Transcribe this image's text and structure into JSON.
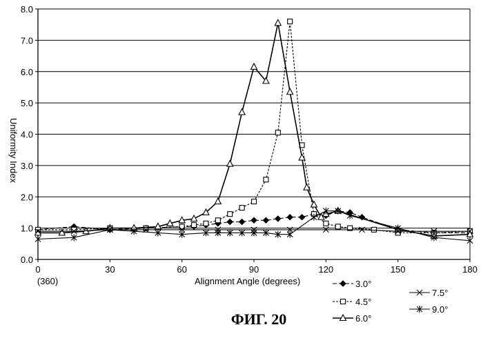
{
  "chart_data": {
    "type": "line",
    "title": "",
    "xlabel": "Alignment Angle (degrees)",
    "ylabel": "Uniformity Index",
    "xlim": [
      0,
      180
    ],
    "ylim": [
      0,
      8
    ],
    "x_ticks": [
      0,
      30,
      60,
      90,
      120,
      150,
      180
    ],
    "x_tick_labels": [
      "0",
      "30",
      "60",
      "90",
      "120",
      "150",
      "180"
    ],
    "x_tick_sublabel": "(360)",
    "y_ticks": [
      0,
      1,
      2,
      3,
      4,
      5,
      6,
      7,
      8
    ],
    "y_tick_labels": [
      "0.0",
      "1.0",
      "2.0",
      "3.0",
      "4.0",
      "5.0",
      "6.0",
      "7.0",
      "8.0"
    ],
    "grid": "horizontal",
    "legend_position": "bottom-right",
    "caption": "ФИГ. 20",
    "series": [
      {
        "name": "3.0°",
        "marker": "diamond-filled",
        "dash": "6,3",
        "x": [
          0,
          15,
          30,
          45,
          60,
          65,
          70,
          75,
          80,
          85,
          90,
          95,
          100,
          105,
          110,
          115,
          120,
          125,
          130,
          135,
          150,
          165,
          180
        ],
        "y": [
          0.95,
          1.05,
          0.95,
          1.0,
          1.05,
          1.05,
          1.1,
          1.15,
          1.2,
          1.2,
          1.25,
          1.25,
          1.3,
          1.35,
          1.35,
          1.45,
          1.4,
          1.55,
          1.5,
          1.35,
          0.95,
          0.85,
          0.85
        ]
      },
      {
        "name": "4.5°",
        "marker": "square-open",
        "dash": "3,2",
        "x": [
          0,
          15,
          30,
          45,
          60,
          65,
          70,
          75,
          80,
          85,
          90,
          95,
          100,
          105,
          110,
          115,
          120,
          125,
          130,
          140,
          150,
          165,
          180
        ],
        "y": [
          0.95,
          0.95,
          1.0,
          1.0,
          1.05,
          1.1,
          1.15,
          1.25,
          1.45,
          1.65,
          1.85,
          2.55,
          4.05,
          7.6,
          3.65,
          1.45,
          1.15,
          1.05,
          1.0,
          0.95,
          0.85,
          0.85,
          0.9
        ]
      },
      {
        "name": "6.0°",
        "marker": "triangle-open",
        "dash": "",
        "x": [
          0,
          10,
          20,
          30,
          40,
          50,
          55,
          60,
          65,
          70,
          75,
          80,
          85,
          90,
          95,
          100,
          105,
          110,
          112,
          115,
          118,
          120,
          125,
          150,
          165,
          180
        ],
        "y": [
          0.85,
          0.85,
          0.9,
          1.0,
          1.0,
          1.05,
          1.15,
          1.25,
          1.3,
          1.5,
          1.85,
          3.05,
          4.7,
          6.15,
          5.7,
          7.55,
          5.35,
          3.25,
          2.3,
          1.75,
          1.35,
          1.45,
          1.55,
          0.95,
          0.75,
          0.8
        ]
      },
      {
        "name": "7.5°",
        "marker": "x",
        "dash": "",
        "x": [
          0,
          15,
          30,
          45,
          60,
          75,
          90,
          105,
          120,
          135,
          150,
          165,
          180
        ],
        "y": [
          0.9,
          0.9,
          0.95,
          0.95,
          0.95,
          0.95,
          0.95,
          0.95,
          0.95,
          0.95,
          0.9,
          0.9,
          0.9
        ]
      },
      {
        "name": "9.0°",
        "marker": "asterisk",
        "dash": "",
        "x": [
          0,
          15,
          30,
          40,
          50,
          60,
          70,
          75,
          80,
          85,
          90,
          95,
          100,
          105,
          115,
          120,
          125,
          130,
          150,
          165,
          180
        ],
        "y": [
          0.65,
          0.7,
          0.95,
          0.9,
          0.85,
          0.8,
          0.85,
          0.85,
          0.85,
          0.85,
          0.85,
          0.85,
          0.8,
          0.8,
          1.35,
          1.55,
          1.55,
          1.4,
          1.0,
          0.7,
          0.6
        ]
      }
    ]
  }
}
